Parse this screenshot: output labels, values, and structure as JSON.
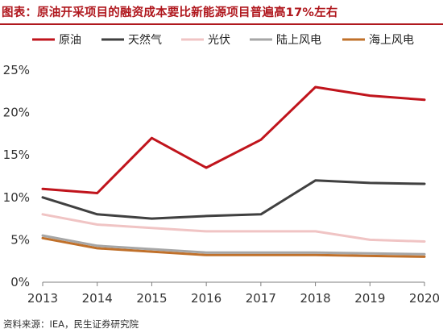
{
  "title": "图表：原油开采项目的融资成本要比新能源项目普遍高17%左右",
  "source": "资料来源：IEA，民生证券研究院",
  "chart_data": {
    "type": "line",
    "title": "图表：原油开采项目的融资成本要比新能源项目普遍高17%左右",
    "xlabel": "",
    "ylabel": "",
    "x": [
      "2013",
      "2014",
      "2015",
      "2016",
      "2017",
      "2018",
      "2019",
      "2020"
    ],
    "ylim": [
      0,
      25
    ],
    "yticks": [
      "0%",
      "5%",
      "10%",
      "15%",
      "20%",
      "25%"
    ],
    "yticks_values": [
      0,
      5,
      10,
      15,
      20,
      25
    ],
    "grid": false,
    "legend_position": "top",
    "series": [
      {
        "name": "原油",
        "color": "#c0141c",
        "values": [
          11.0,
          10.5,
          17.0,
          13.5,
          16.8,
          23.0,
          22.0,
          21.5
        ]
      },
      {
        "name": "天然气",
        "color": "#404040",
        "values": [
          10.0,
          8.0,
          7.5,
          7.8,
          8.0,
          12.0,
          11.7,
          11.6
        ]
      },
      {
        "name": "光伏",
        "color": "#f0c4c4",
        "values": [
          8.0,
          6.8,
          6.4,
          6.0,
          6.0,
          6.0,
          5.0,
          4.8
        ]
      },
      {
        "name": "陆上风电",
        "color": "#a6a6a6",
        "values": [
          5.5,
          4.3,
          3.9,
          3.5,
          3.5,
          3.5,
          3.4,
          3.3
        ]
      },
      {
        "name": "海上风电",
        "color": "#c0702a",
        "values": [
          5.2,
          4.0,
          3.6,
          3.2,
          3.2,
          3.2,
          3.1,
          3.0
        ]
      }
    ]
  }
}
